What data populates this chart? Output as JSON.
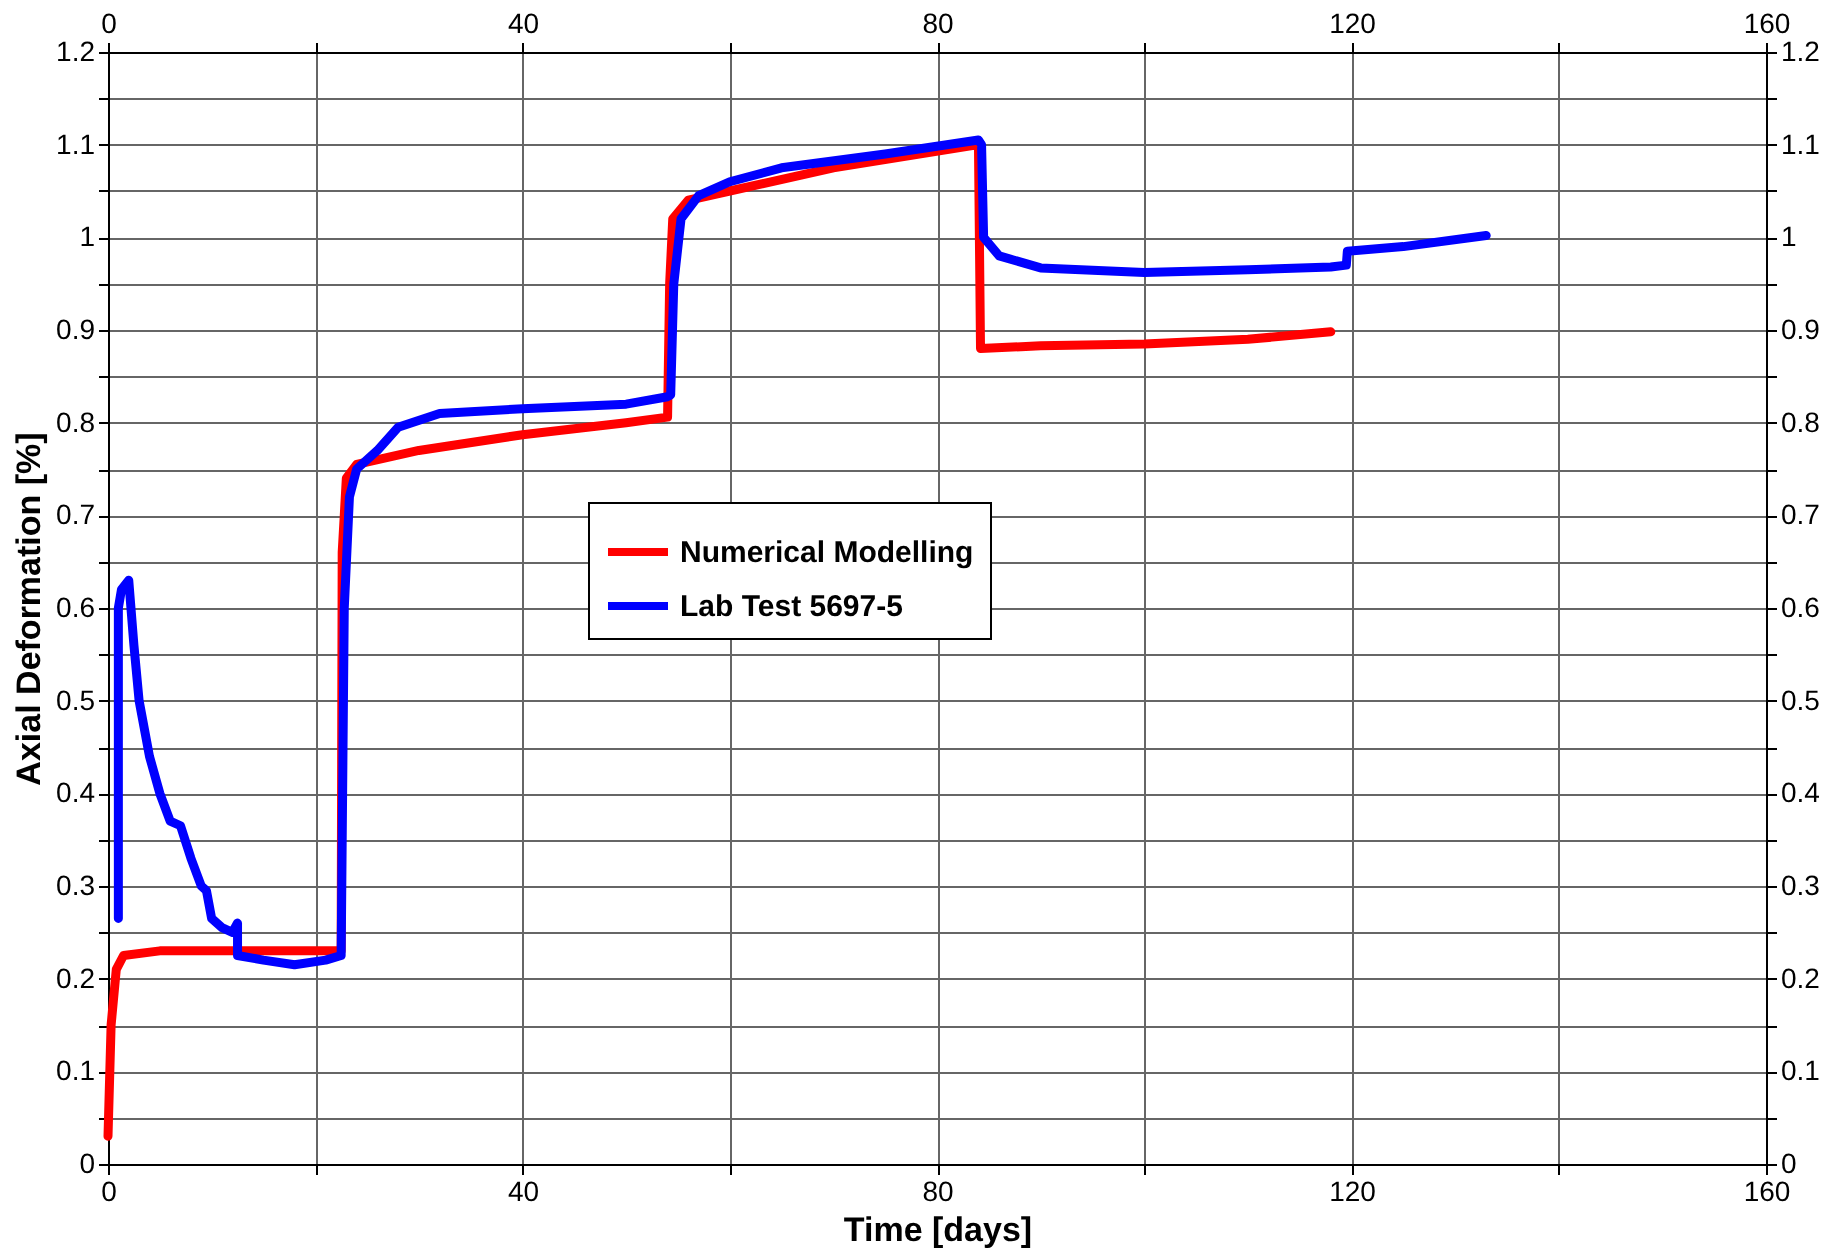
{
  "chart_data": {
    "type": "line",
    "xlabel": "Time [days]",
    "ylabel": "Axial Deformation [%]",
    "xlim": [
      0,
      160
    ],
    "ylim": [
      0,
      1.2
    ],
    "xticks": [
      0,
      {
        "value": 20,
        "label": null
      },
      40,
      {
        "value": 60,
        "label": null
      },
      80,
      {
        "value": 100,
        "label": null
      },
      120,
      {
        "value": 140,
        "label": null
      },
      160
    ],
    "x2lim": [
      0,
      160
    ],
    "x2ticks": [
      0,
      {
        "value": 20,
        "label": null
      },
      40,
      {
        "value": 60,
        "label": null
      },
      80,
      {
        "value": 100,
        "label": null
      },
      120,
      {
        "value": 140,
        "label": null
      },
      160
    ],
    "yticks": [
      0,
      {
        "value": 0.05,
        "label": null
      },
      0.1,
      {
        "value": 0.15,
        "label": null
      },
      0.2,
      {
        "value": 0.25,
        "label": null
      },
      0.3,
      {
        "value": 0.35,
        "label": null
      },
      0.4,
      {
        "value": 0.45,
        "label": null
      },
      0.5,
      {
        "value": 0.55,
        "label": null
      },
      0.6,
      {
        "value": 0.65,
        "label": null
      },
      0.7,
      {
        "value": 0.75,
        "label": null
      },
      0.8,
      {
        "value": 0.85,
        "label": null
      },
      0.9,
      {
        "value": 0.95,
        "label": null
      },
      1,
      {
        "value": 1.05,
        "label": null
      },
      1.1,
      {
        "value": 1.15,
        "label": null
      },
      1.2
    ],
    "y2lim": [
      0,
      1.2
    ],
    "y2ticks": [
      0,
      {
        "value": 0.05,
        "label": null
      },
      0.1,
      {
        "value": 0.15,
        "label": null
      },
      0.2,
      {
        "value": 0.25,
        "label": null
      },
      0.3,
      {
        "value": 0.35,
        "label": null
      },
      0.4,
      {
        "value": 0.45,
        "label": null
      },
      0.5,
      {
        "value": 0.55,
        "label": null
      },
      0.6,
      {
        "value": 0.65,
        "label": null
      },
      0.7,
      {
        "value": 0.75,
        "label": null
      },
      0.8,
      {
        "value": 0.85,
        "label": null
      },
      0.9,
      {
        "value": 0.95,
        "label": null
      },
      1,
      {
        "value": 1.05,
        "label": null
      },
      1.1,
      {
        "value": 1.15,
        "label": null
      },
      1.2
    ],
    "grid": true,
    "legend": "center",
    "marker": "none",
    "line_style": "solid",
    "series": [
      {
        "name": "Numerical Modelling",
        "color": "#ff0000",
        "x": [
          0,
          0.3,
          0.8,
          1.5,
          5,
          12,
          22.5,
          22.6,
          23,
          24,
          30,
          40,
          50,
          54,
          54.2,
          54.5,
          56,
          60,
          70,
          84,
          84.2,
          90,
          100,
          110,
          118
        ],
        "values": [
          0.03,
          0.15,
          0.21,
          0.225,
          0.23,
          0.23,
          0.23,
          0.66,
          0.74,
          0.755,
          0.77,
          0.787,
          0.8,
          0.806,
          0.95,
          1.02,
          1.04,
          1.05,
          1.075,
          1.1,
          0.88,
          0.883,
          0.885,
          0.89,
          0.898
        ]
      },
      {
        "name": "Lab Test 5697-5",
        "color": "#0000ff",
        "x": [
          1,
          1,
          1.3,
          2,
          2.5,
          3,
          4,
          5,
          6,
          7,
          8,
          9,
          9.5,
          10,
          11,
          12,
          12.5,
          12.5,
          15,
          18,
          21,
          22.5,
          22.8,
          23.3,
          24,
          26,
          28,
          32,
          40,
          50,
          54,
          54.3,
          54.6,
          55.3,
          57,
          60,
          65,
          75,
          84,
          84.3,
          84.5,
          86,
          90,
          100,
          110,
          118,
          119.5,
          119.6,
          125,
          133
        ],
        "values": [
          0.265,
          0.6,
          0.62,
          0.63,
          0.56,
          0.5,
          0.44,
          0.4,
          0.37,
          0.365,
          0.33,
          0.3,
          0.295,
          0.265,
          0.255,
          0.25,
          0.26,
          0.225,
          0.22,
          0.215,
          0.22,
          0.225,
          0.6,
          0.72,
          0.75,
          0.77,
          0.795,
          0.81,
          0.815,
          0.82,
          0.828,
          0.83,
          0.95,
          1.02,
          1.045,
          1.06,
          1.075,
          1.09,
          1.105,
          1.1,
          1.0,
          0.98,
          0.967,
          0.962,
          0.965,
          0.968,
          0.97,
          0.985,
          0.99,
          1.002
        ]
      }
    ]
  }
}
